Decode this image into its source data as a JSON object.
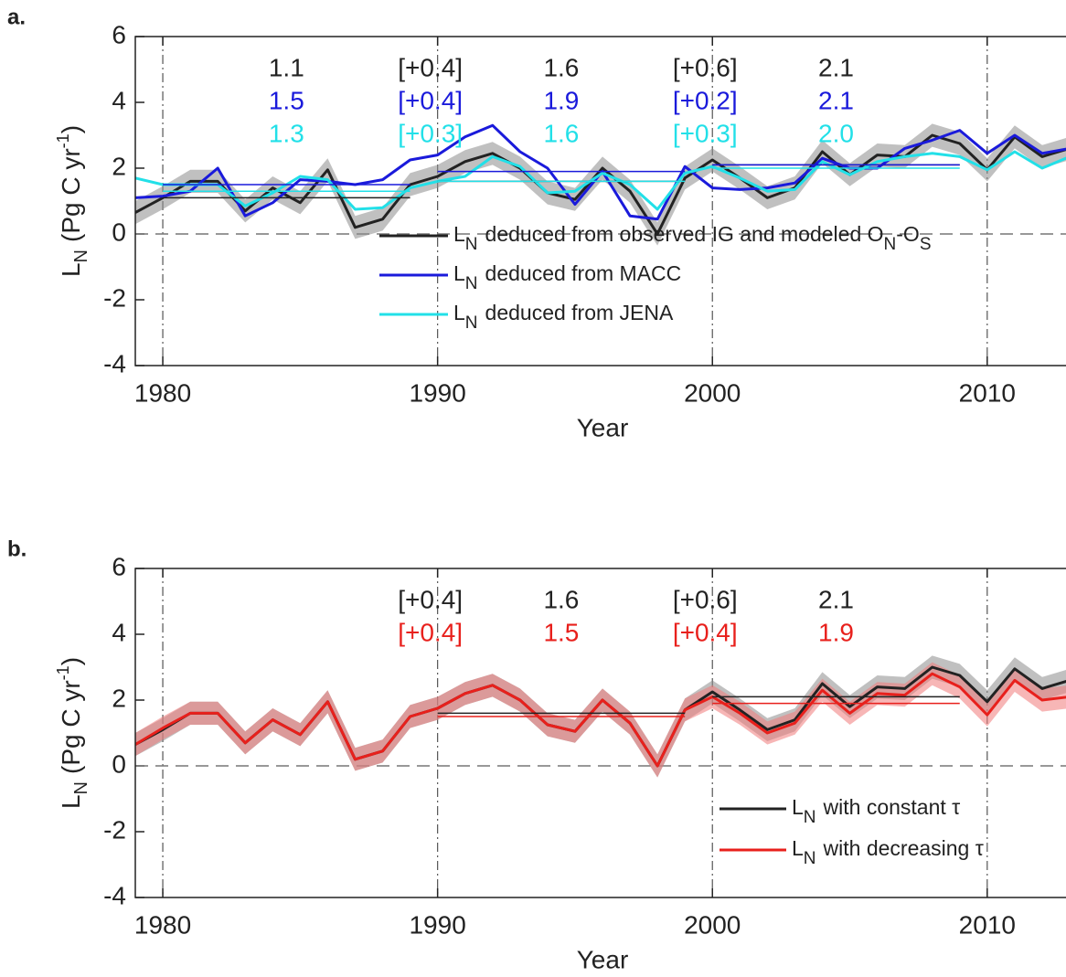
{
  "chart_data": [
    {
      "type": "line",
      "panel_label": "a.",
      "ylabel": {
        "symbol": "L",
        "subscript": "N",
        "text": "(Pg C yr",
        "superscript": "-1",
        "close": ")"
      },
      "xlabel": "Year",
      "x": [
        1979,
        1980,
        1981,
        1982,
        1983,
        1984,
        1985,
        1986,
        1987,
        1988,
        1989,
        1990,
        1991,
        1992,
        1993,
        1994,
        1995,
        1996,
        1997,
        1998,
        1999,
        2000,
        2001,
        2002,
        2003,
        2004,
        2005,
        2006,
        2007,
        2008,
        2009,
        2010,
        2011,
        2012,
        2013
      ],
      "xlim": [
        1979,
        2013
      ],
      "ylim": [
        -4,
        6
      ],
      "xticks": [
        1980,
        1990,
        2000,
        2010
      ],
      "yticks": [
        -4,
        -2,
        0,
        2,
        4,
        6
      ],
      "grid": true,
      "zero_line": true,
      "legend": "lower center",
      "periods": [
        [
          1980,
          1989
        ],
        [
          1990,
          1999
        ],
        [
          2000,
          2009
        ]
      ],
      "series": [
        {
          "name": {
            "symbol": "L",
            "subscript": "N",
            "text": "deduced from observed IG and modeled O",
            "subscript2": "N",
            "text2": "-O",
            "subscript3": "S"
          },
          "color": "#222222",
          "band_color": "#8c8c8c",
          "uncertainty": 0.35,
          "values": [
            0.65,
            1.1,
            1.6,
            1.6,
            0.7,
            1.4,
            0.95,
            1.95,
            0.2,
            0.45,
            1.5,
            1.75,
            2.2,
            2.45,
            2.0,
            1.25,
            1.05,
            2.0,
            1.3,
            0.0,
            1.7,
            2.25,
            1.7,
            1.1,
            1.4,
            2.5,
            1.8,
            2.4,
            2.35,
            3.0,
            2.75,
            1.95,
            2.95,
            2.35,
            2.6
          ],
          "means": [
            1.1,
            1.6,
            2.1
          ],
          "diffs": [
            {
              "value": 0.4,
              "label": "[+0.4]"
            },
            {
              "value": 0.6,
              "label": "[+0.6]"
            }
          ]
        },
        {
          "name": {
            "symbol": "L",
            "subscript": "N",
            "text": "deduced from MACC"
          },
          "color": "#1a1adb",
          "values": [
            1.1,
            1.15,
            1.3,
            2.0,
            0.55,
            0.95,
            1.65,
            1.6,
            1.5,
            1.65,
            2.25,
            2.4,
            2.95,
            3.3,
            2.5,
            2.0,
            0.9,
            1.9,
            0.55,
            0.45,
            2.05,
            1.4,
            1.35,
            1.4,
            1.55,
            2.3,
            2.0,
            2.0,
            2.6,
            2.85,
            3.15,
            2.45,
            3.0,
            2.45,
            2.6
          ],
          "means": [
            1.5,
            1.9,
            2.1
          ],
          "diffs": [
            {
              "value": 0.4,
              "label": "[+0.4]"
            },
            {
              "value": 0.2,
              "label": "[+0.2]"
            }
          ]
        },
        {
          "name": {
            "symbol": "L",
            "subscript": "N",
            "text": "deduced from JENA"
          },
          "color": "#22e0e8",
          "values": [
            1.7,
            1.5,
            1.5,
            1.5,
            0.85,
            1.25,
            1.75,
            1.65,
            0.75,
            0.8,
            1.4,
            1.6,
            1.75,
            2.35,
            2.05,
            1.25,
            1.3,
            1.85,
            1.5,
            0.75,
            1.85,
            2.05,
            1.7,
            1.3,
            1.35,
            2.2,
            1.8,
            2.2,
            2.35,
            2.45,
            2.35,
            1.95,
            2.5,
            2.0,
            2.35
          ],
          "means": [
            1.3,
            1.6,
            {
              "value": 2.0,
              "label": "2.0"
            }
          ],
          "diffs": [
            {
              "value": 0.3,
              "label": "[+0.3]"
            },
            {
              "value": 0.3,
              "label": "[+0.3]"
            }
          ]
        }
      ]
    },
    {
      "type": "line",
      "panel_label": "b.",
      "ylabel": {
        "symbol": "L",
        "subscript": "N",
        "text": "(Pg C yr",
        "superscript": "-1",
        "close": ")"
      },
      "xlabel": "Year",
      "x": [
        1979,
        1980,
        1981,
        1982,
        1983,
        1984,
        1985,
        1986,
        1987,
        1988,
        1989,
        1990,
        1991,
        1992,
        1993,
        1994,
        1995,
        1996,
        1997,
        1998,
        1999,
        2000,
        2001,
        2002,
        2003,
        2004,
        2005,
        2006,
        2007,
        2008,
        2009,
        2010,
        2011,
        2012,
        2013
      ],
      "xlim": [
        1979,
        2013
      ],
      "ylim": [
        -4,
        6
      ],
      "xticks": [
        1980,
        1990,
        2000,
        2010
      ],
      "yticks": [
        -4,
        -2,
        0,
        2,
        4,
        6
      ],
      "grid": true,
      "zero_line": true,
      "legend": "lower right",
      "periods": [
        [
          1980,
          1989
        ],
        [
          1990,
          1999
        ],
        [
          2000,
          2009
        ]
      ],
      "series": [
        {
          "name": {
            "symbol": "L",
            "subscript": "N",
            "text": "with constant τ"
          },
          "color": "#222222",
          "band_color": "#8c8c8c",
          "uncertainty": 0.35,
          "values": [
            0.65,
            1.1,
            1.6,
            1.6,
            0.7,
            1.4,
            0.95,
            1.95,
            0.2,
            0.45,
            1.5,
            1.75,
            2.2,
            2.45,
            2.0,
            1.25,
            1.05,
            2.0,
            1.3,
            0.0,
            1.7,
            2.25,
            1.7,
            1.1,
            1.4,
            2.5,
            1.8,
            2.4,
            2.35,
            3.0,
            2.75,
            1.95,
            2.95,
            2.35,
            2.6
          ],
          "means": [
            null,
            1.6,
            2.1
          ],
          "diffs": [
            {
              "value": 0.4,
              "label": "[+0.4]"
            },
            {
              "value": 0.6,
              "label": "[+0.6]"
            }
          ]
        },
        {
          "name": {
            "symbol": "L",
            "subscript": "N",
            "text": "with decreasing τ"
          },
          "color": "#e8201c",
          "band_color": "#f07a7a",
          "uncertainty": 0.35,
          "values": [
            0.65,
            1.15,
            1.6,
            1.6,
            0.7,
            1.4,
            0.95,
            1.95,
            0.2,
            0.45,
            1.5,
            1.75,
            2.2,
            2.45,
            2.0,
            1.25,
            1.05,
            2.0,
            1.3,
            0.0,
            1.7,
            2.1,
            1.6,
            1.0,
            1.3,
            2.3,
            1.6,
            2.2,
            2.15,
            2.8,
            2.4,
            1.55,
            2.6,
            2.0,
            2.1
          ],
          "means": [
            null,
            1.5,
            1.9
          ],
          "diffs": [
            {
              "value": 0.4,
              "label": "[+0.4]"
            },
            {
              "value": 0.4,
              "label": "[+0.4]"
            }
          ]
        }
      ]
    }
  ]
}
